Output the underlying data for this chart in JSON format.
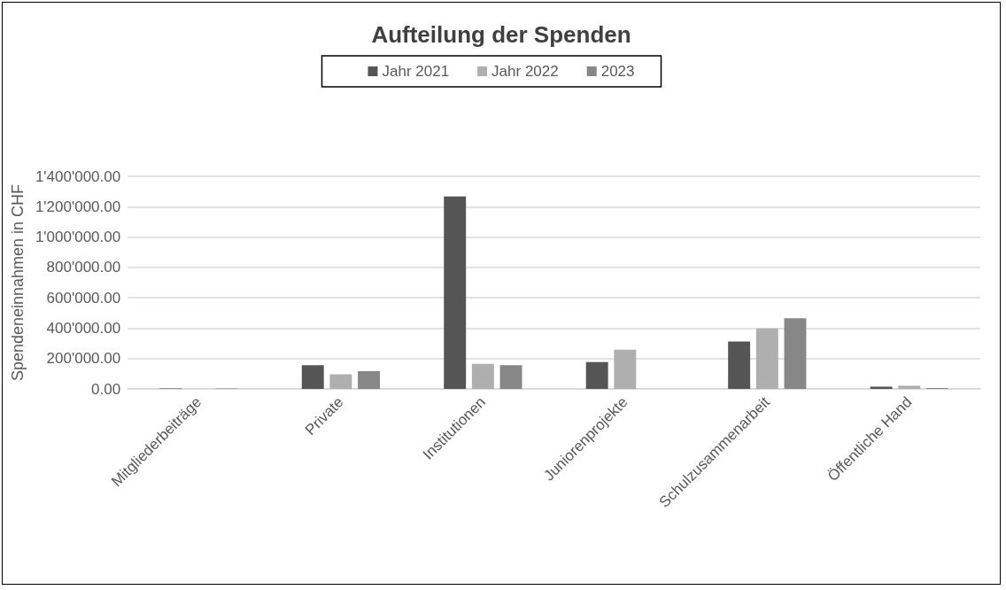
{
  "chart_data": {
    "type": "bar",
    "title": "Aufteilung der Spenden",
    "ylabel": "Spendeneinnahmen in CHF",
    "categories": [
      "Mitgliederbeiträge",
      "Private",
      "Institutionen",
      "Juniorenprojekte",
      "Schulzusammenarbeit",
      "Öffentliche Hand"
    ],
    "series": [
      {
        "name": "Jahr 2021",
        "color": "#555555",
        "values": [
          3000,
          156000,
          1267000,
          177000,
          312000,
          15000
        ]
      },
      {
        "name": "Jahr 2022",
        "color": "#afafaf",
        "values": [
          0,
          96000,
          165000,
          258000,
          398000,
          21000
        ]
      },
      {
        "name": "2023",
        "color": "#878787",
        "values": [
          3000,
          117000,
          156000,
          0,
          465000,
          6000
        ]
      }
    ],
    "ylim": [
      0,
      1400000
    ],
    "yticks": [
      {
        "value": 0,
        "label": "0.00"
      },
      {
        "value": 200000,
        "label": "200'000.00"
      },
      {
        "value": 400000,
        "label": "400'000.00"
      },
      {
        "value": 600000,
        "label": "600'000.00"
      },
      {
        "value": 800000,
        "label": "800'000.00"
      },
      {
        "value": 1000000,
        "label": "1'000'000.00"
      },
      {
        "value": 1200000,
        "label": "1'200'000.00"
      },
      {
        "value": 1400000,
        "label": "1'400'000.00"
      }
    ],
    "grid": "y",
    "legend": "top"
  }
}
